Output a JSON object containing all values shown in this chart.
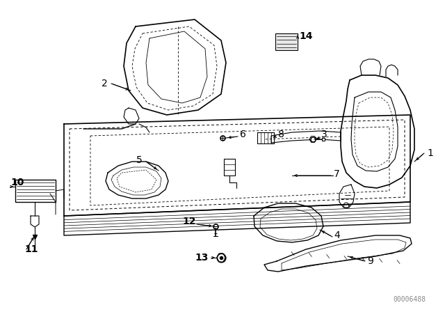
{
  "bg_color": "#ffffff",
  "line_color": "#000000",
  "diagram_code": "00006488",
  "fontsize_labels": 10,
  "fontsize_code": 7
}
